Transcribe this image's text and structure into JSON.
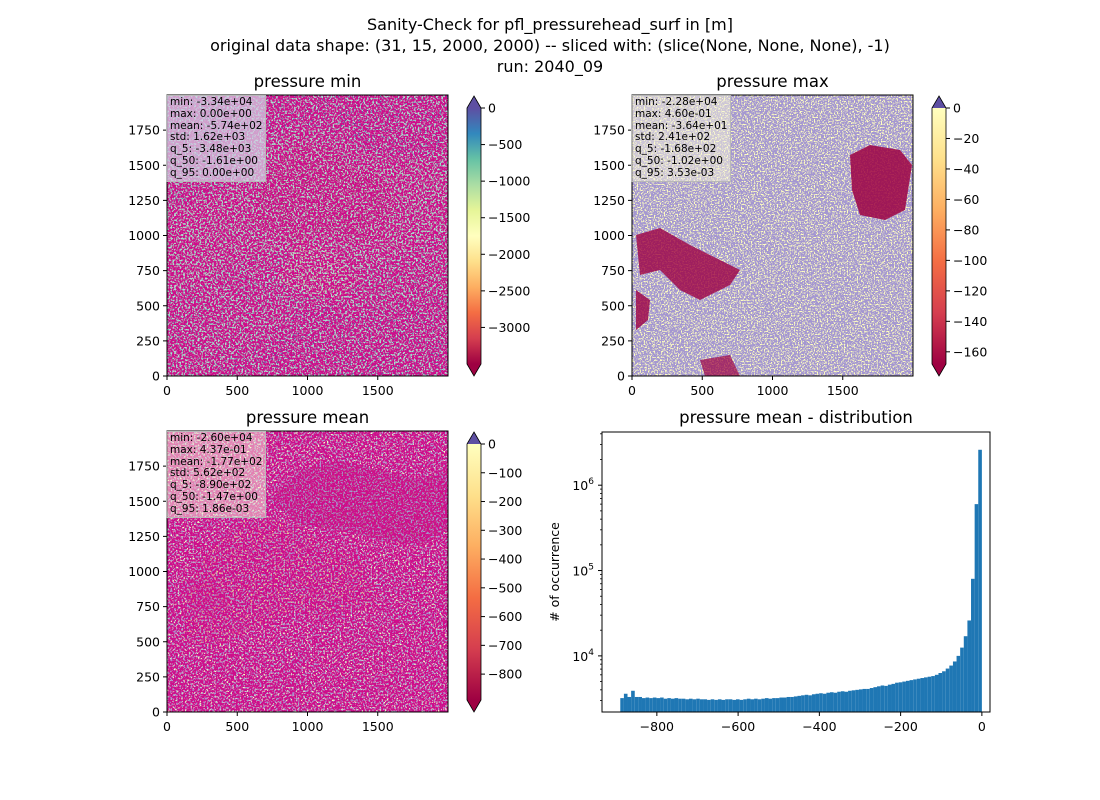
{
  "figure": {
    "title_lines": [
      "Sanity-Check for pfl_pressurehead_surf in [m]",
      "original data shape: (31, 15, 2000, 2000) -- sliced with: (slice(None, None, None), -1)",
      "run: 2040_09"
    ]
  },
  "panels": {
    "min": {
      "title": "pressure min",
      "stats": [
        "min: -3.34e+04",
        "max: 0.00e+00",
        "mean: -5.74e+02",
        "std: 1.62e+03",
        "q_5: -3.48e+03",
        "q_50: -1.61e+00",
        "q_95: 0.00e+00"
      ],
      "colorbar_ticks": [
        "0",
        "−500",
        "−1000",
        "−1500",
        "−2000",
        "−2500",
        "−3000"
      ],
      "colorbar_range": [
        -3500,
        0
      ]
    },
    "max": {
      "title": "pressure max",
      "stats": [
        "min: -2.28e+04",
        "max: 4.60e-01",
        "mean: -3.64e+01",
        "std: 2.41e+02",
        "q_5: -1.68e+02",
        "q_50: -1.02e+00",
        "q_95: 3.53e-03"
      ],
      "colorbar_ticks": [
        "0",
        "−20",
        "−40",
        "−60",
        "−80",
        "−100",
        "−120",
        "−140",
        "−160"
      ],
      "colorbar_range": [
        -168,
        0
      ]
    },
    "mean": {
      "title": "pressure mean",
      "stats": [
        "min: -2.60e+04",
        "max: 4.37e-01",
        "mean: -1.77e+02",
        "std: 5.62e+02",
        "q_5: -8.90e+02",
        "q_50: -1.47e+00",
        "q_95: 1.86e-03"
      ],
      "colorbar_ticks": [
        "0",
        "−100",
        "−200",
        "−300",
        "−400",
        "−500",
        "−600",
        "−700",
        "−800"
      ],
      "colorbar_range": [
        -890,
        0
      ]
    },
    "map_axes": {
      "x_ticks": [
        "0",
        "500",
        "1000",
        "1500"
      ],
      "y_ticks": [
        "0",
        "250",
        "500",
        "750",
        "1000",
        "1250",
        "1500",
        "1750"
      ],
      "xlim": [
        0,
        2000
      ],
      "ylim": [
        0,
        2000
      ]
    }
  },
  "histogram": {
    "title": "pressure mean - distribution",
    "ylabel": "# of occurrence",
    "x_ticks": [
      "−800",
      "−600",
      "−400",
      "−200",
      "0"
    ],
    "y_ticks": [
      "10^4",
      "10^5",
      "10^6"
    ],
    "bar_color": "#1f77b4"
  },
  "chart_data": {
    "type": "bar",
    "title": "pressure mean - distribution",
    "xlabel": "",
    "ylabel": "# of occurrence",
    "y_scale": "log",
    "xlim": [
      -935,
      20
    ],
    "ylim": [
      2200,
      4200000
    ],
    "bin_range": [
      -890,
      0
    ],
    "bins": 100,
    "counts": [
      3200,
      3600,
      3300,
      3900,
      3300,
      3300,
      3200,
      3250,
      3200,
      3250,
      3200,
      3250,
      3150,
      3200,
      3150,
      3200,
      3150,
      3150,
      3100,
      3150,
      3100,
      3150,
      3100,
      3100,
      3050,
      3100,
      3050,
      3100,
      3050,
      3100,
      3100,
      3050,
      3100,
      3050,
      3100,
      3150,
      3100,
      3150,
      3100,
      3150,
      3200,
      3150,
      3200,
      3200,
      3250,
      3250,
      3300,
      3300,
      3350,
      3400,
      3450,
      3500,
      3450,
      3550,
      3600,
      3650,
      3600,
      3700,
      3750,
      3700,
      3800,
      3850,
      3800,
      3900,
      3950,
      4000,
      4050,
      4100,
      4100,
      4200,
      4300,
      4400,
      4500,
      4450,
      4600,
      4700,
      4850,
      4900,
      5000,
      5100,
      5200,
      5300,
      5400,
      5500,
      5600,
      5700,
      5800,
      6000,
      6300,
      6600,
      7100,
      7700,
      8600,
      10000,
      12500,
      17000,
      26000,
      80000,
      600000,
      2600000
    ]
  }
}
